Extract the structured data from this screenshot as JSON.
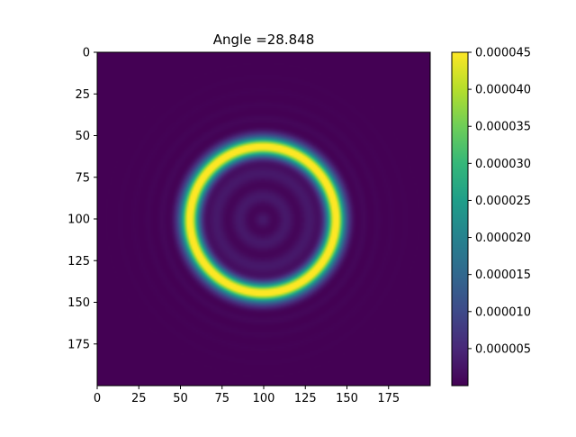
{
  "chart_data": {
    "type": "heatmap",
    "title": "Angle =28.848",
    "xlabel": "",
    "ylabel": "",
    "grid": false,
    "colormap": "viridis",
    "image_extent": {
      "x": [
        0,
        200
      ],
      "y": [
        200,
        0
      ],
      "y_inverted": true
    },
    "xticks": [
      0,
      25,
      50,
      75,
      100,
      125,
      150,
      175
    ],
    "yticks": [
      0,
      25,
      50,
      75,
      100,
      125,
      150,
      175
    ],
    "xtick_labels": [
      "0",
      "25",
      "50",
      "75",
      "100",
      "125",
      "150",
      "175"
    ],
    "ytick_labels": [
      "0",
      "25",
      "50",
      "75",
      "100",
      "125",
      "150",
      "175"
    ],
    "colorbar": {
      "range": [
        0.0,
        4.5e-05
      ],
      "ticks": [
        5e-06,
        1e-05,
        1.5e-05,
        2e-05,
        2.5e-05,
        3e-05,
        3.5e-05,
        4e-05,
        4.5e-05
      ],
      "tick_labels": [
        "0.000005",
        "0.000010",
        "0.000015",
        "0.000020",
        "0.000025",
        "0.000030",
        "0.000035",
        "0.000040",
        "0.000045"
      ]
    },
    "ring": {
      "center": [
        99,
        100
      ],
      "radius": 44,
      "peak_value": 4.5e-05,
      "inner_background": 3e-06,
      "outer_background": 0.0
    }
  }
}
